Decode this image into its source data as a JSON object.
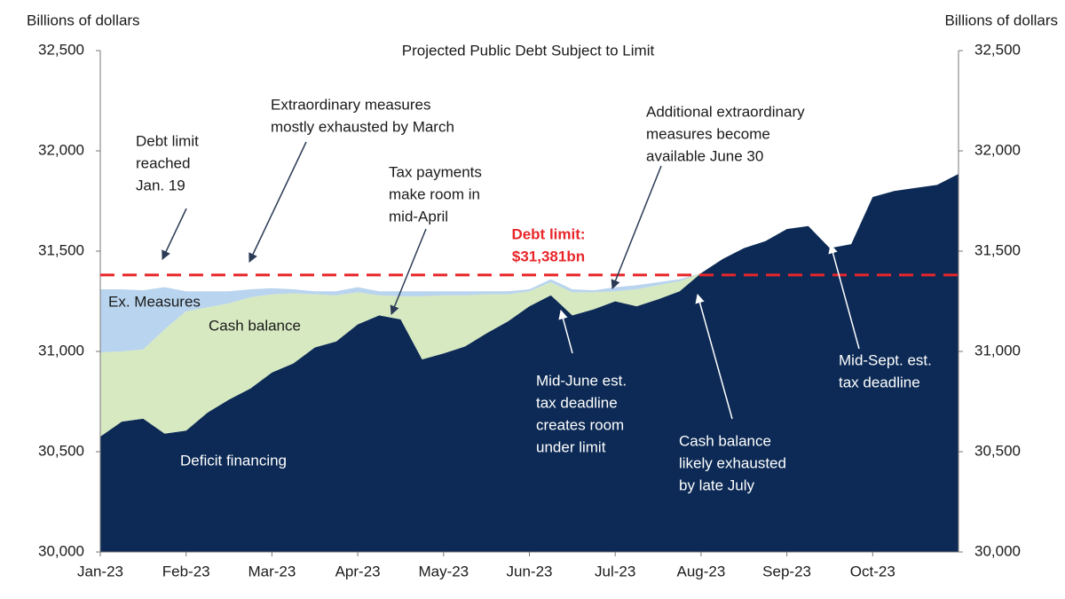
{
  "chart_data": {
    "type": "stacked_area",
    "title": "Projected Public Debt Subject to Limit",
    "y_label": "Billions of dollars",
    "y2_label": "Billions of dollars",
    "categories": [
      "Jan-23",
      null,
      null,
      null,
      "Feb-23",
      null,
      null,
      null,
      "Mar-23",
      null,
      null,
      null,
      "Apr-23",
      null,
      null,
      null,
      "May-23",
      null,
      null,
      null,
      "Jun-23",
      null,
      null,
      null,
      "Jul-23",
      null,
      null,
      null,
      "Aug-23",
      null,
      null,
      null,
      "Sep-23",
      null,
      null,
      null,
      "Oct-23",
      null,
      null,
      null,
      null
    ],
    "series": [
      {
        "name": "Deficit financing",
        "color": "#0c2a55",
        "values": [
          30575,
          30650,
          30665,
          30590,
          30605,
          30695,
          30760,
          30815,
          30895,
          30940,
          31020,
          31050,
          31135,
          31180,
          31160,
          30960,
          30990,
          31025,
          31090,
          31150,
          31225,
          31280,
          31180,
          31210,
          31250,
          31225,
          31260,
          31300,
          31390,
          31460,
          31515,
          31550,
          31610,
          31625,
          31515,
          31535,
          31770,
          31800,
          31815,
          31830,
          31885
        ]
      },
      {
        "name": "Cash balance",
        "color": "#d7e9c1",
        "values": [
          420,
          350,
          345,
          520,
          595,
          525,
          480,
          455,
          390,
          350,
          265,
          230,
          160,
          100,
          115,
          315,
          290,
          255,
          195,
          135,
          75,
          65,
          115,
          85,
          50,
          85,
          70,
          50,
          0,
          0,
          0,
          0,
          0,
          0,
          0,
          0,
          0,
          0,
          0,
          0,
          0
        ]
      },
      {
        "name": "Ex. Measures",
        "color": "#b9d4ee",
        "values": [
          315,
          310,
          295,
          210,
          100,
          80,
          60,
          40,
          30,
          20,
          15,
          20,
          25,
          20,
          25,
          25,
          20,
          20,
          15,
          15,
          10,
          15,
          15,
          10,
          20,
          20,
          15,
          10,
          0,
          0,
          0,
          0,
          0,
          0,
          0,
          0,
          0,
          0,
          0,
          0,
          0
        ]
      }
    ],
    "ylim": [
      30000,
      32500
    ],
    "yticks": [
      {
        "value": 30000,
        "label": "30,000"
      },
      {
        "value": 30500,
        "label": "30,500"
      },
      {
        "value": 31000,
        "label": "31,000"
      },
      {
        "value": 31500,
        "label": "31,500"
      },
      {
        "value": 32000,
        "label": "32,000"
      },
      {
        "value": 32500,
        "label": "32,500"
      }
    ],
    "y2lim": [
      30000,
      32500
    ],
    "y2ticks": [
      {
        "value": 30000,
        "label": "30,000"
      },
      {
        "value": 30500,
        "label": "30,500"
      },
      {
        "value": 31000,
        "label": "31,000"
      },
      {
        "value": 31500,
        "label": "31,500"
      },
      {
        "value": 32000,
        "label": "32,000"
      },
      {
        "value": 32500,
        "label": "32,500"
      }
    ],
    "debt_limit": {
      "value": 31381,
      "label": [
        "Debt limit:",
        "$31,381bn"
      ],
      "color": "#e8262a"
    },
    "annotations": [
      [
        "Debt limit",
        "reached",
        "Jan. 19"
      ],
      [
        "Extraordinary measures",
        "mostly exhausted by March"
      ],
      [
        "Tax payments",
        "make room in",
        "mid-April"
      ],
      [
        "Additional extraordinary",
        "measures become",
        "available June 30"
      ],
      [
        "Mid-June est.",
        "tax deadline",
        "creates room",
        "under limit"
      ],
      [
        "Cash balance",
        "likely exhausted",
        "by late July"
      ],
      [
        "Mid-Sept. est.",
        "tax deadline"
      ]
    ]
  }
}
